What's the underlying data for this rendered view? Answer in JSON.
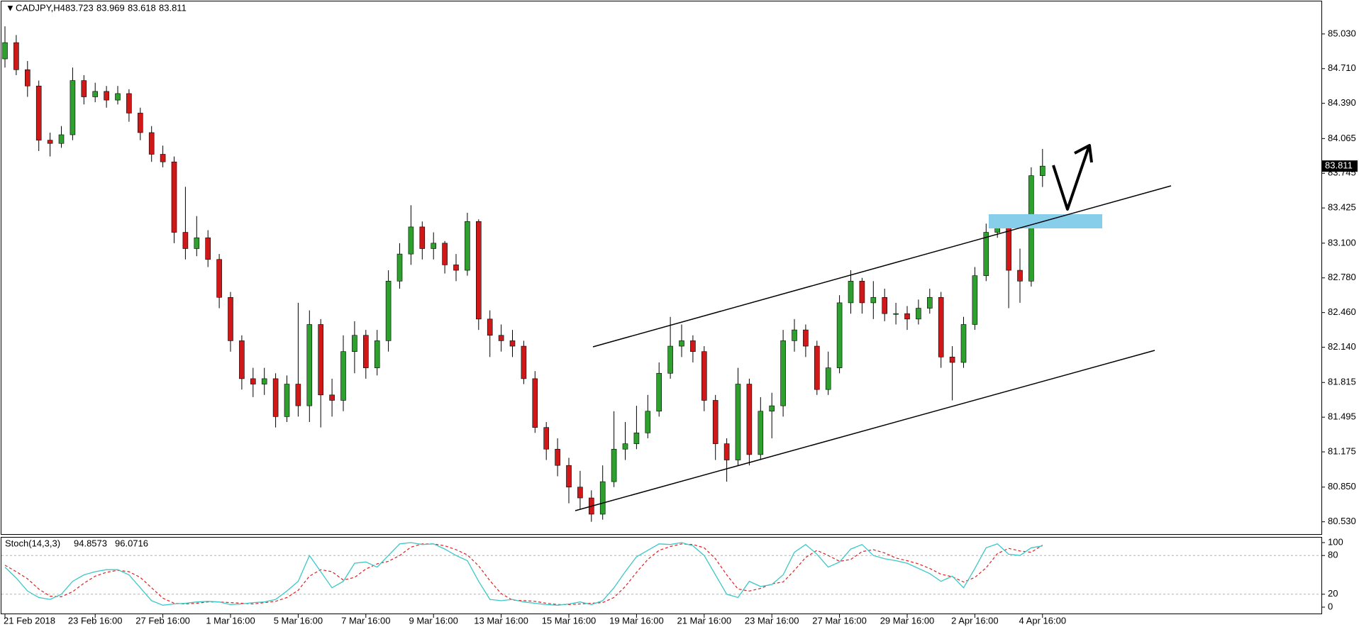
{
  "chart_data": {
    "type": "candlestick",
    "symbol": "CADJPY,H4",
    "categories": [
      "21 Feb 2018",
      null,
      null,
      null,
      null,
      null,
      null,
      null,
      "23 Feb 16:00",
      null,
      null,
      null,
      null,
      null,
      "27 Feb 16:00",
      null,
      null,
      null,
      null,
      null,
      "1 Mar 16:00",
      null,
      null,
      null,
      null,
      null,
      "5 Mar 16:00",
      null,
      null,
      null,
      null,
      null,
      "7 Mar 16:00",
      null,
      null,
      null,
      null,
      null,
      "9 Mar 16:00",
      null,
      null,
      null,
      null,
      null,
      "13 Mar 16:00",
      null,
      null,
      null,
      null,
      null,
      "15 Mar 16:00",
      null,
      null,
      null,
      null,
      null,
      "19 Mar 16:00",
      null,
      null,
      null,
      null,
      null,
      "21 Mar 16:00",
      null,
      null,
      null,
      null,
      null,
      "23 Mar 16:00",
      null,
      null,
      null,
      null,
      null,
      "27 Mar 16:00",
      null,
      null,
      null,
      null,
      null,
      "29 Mar 16:00",
      null,
      null,
      null,
      null,
      null,
      "2 Apr 16:00",
      null,
      null,
      null,
      null,
      null,
      "4 Apr 16:00"
    ],
    "open": [
      84.8,
      84.95,
      84.7,
      84.55,
      84.05,
      84.02,
      84.1,
      84.6,
      84.45,
      84.5,
      84.42,
      84.48,
      84.3,
      84.12,
      83.92,
      83.85,
      83.2,
      83.05,
      83.15,
      82.95,
      82.6,
      82.2,
      81.85,
      81.8,
      81.85,
      81.5,
      81.8,
      81.6,
      82.35,
      81.7,
      81.65,
      82.1,
      82.25,
      81.95,
      82.2,
      82.75,
      83.0,
      83.25,
      83.05,
      83.1,
      82.9,
      82.85,
      83.3,
      82.4,
      82.25,
      82.2,
      82.15,
      81.85,
      81.4,
      81.2,
      81.05,
      80.85,
      80.75,
      80.6,
      80.9,
      81.2,
      81.25,
      81.35,
      81.55,
      81.9,
      82.15,
      82.2,
      82.1,
      81.65,
      81.25,
      81.1,
      81.8,
      81.15,
      81.55,
      81.6,
      82.2,
      82.3,
      82.15,
      81.75,
      81.95,
      82.55,
      82.75,
      82.55,
      82.6,
      82.45,
      82.45,
      82.4,
      82.5,
      82.6,
      82.05,
      82.0,
      82.35,
      82.8,
      83.2,
      83.28,
      82.85,
      82.75,
      83.723
    ],
    "high": [
      85.1,
      85.02,
      84.78,
      84.6,
      84.12,
      84.18,
      84.72,
      84.65,
      84.58,
      84.55,
      84.55,
      84.52,
      84.35,
      84.18,
      84.0,
      83.9,
      83.62,
      83.35,
      83.22,
      83.0,
      82.65,
      82.25,
      81.95,
      81.95,
      81.9,
      81.88,
      82.55,
      82.48,
      82.4,
      81.85,
      82.25,
      82.38,
      82.3,
      82.3,
      82.85,
      83.1,
      83.45,
      83.3,
      83.2,
      83.12,
      83.0,
      83.38,
      83.32,
      82.48,
      82.35,
      82.3,
      82.2,
      81.92,
      81.45,
      81.3,
      81.12,
      81.0,
      80.82,
      81.05,
      81.55,
      81.45,
      81.6,
      81.7,
      82.0,
      82.42,
      82.35,
      82.25,
      82.15,
      81.7,
      81.3,
      81.95,
      81.85,
      81.68,
      81.72,
      82.3,
      82.4,
      82.35,
      82.2,
      82.1,
      82.62,
      82.85,
      82.78,
      82.75,
      82.68,
      82.55,
      82.52,
      82.58,
      82.68,
      82.65,
      82.15,
      82.42,
      82.88,
      83.28,
      83.35,
      83.35,
      83.05,
      83.8,
      83.969
    ],
    "low": [
      84.72,
      84.65,
      84.45,
      83.95,
      83.9,
      83.98,
      84.05,
      84.38,
      84.4,
      84.35,
      84.38,
      84.22,
      84.05,
      83.85,
      83.8,
      83.1,
      82.95,
      82.98,
      82.88,
      82.5,
      82.1,
      81.75,
      81.68,
      81.7,
      81.4,
      81.45,
      81.5,
      81.45,
      81.4,
      81.5,
      81.55,
      81.9,
      81.85,
      81.88,
      82.1,
      82.68,
      82.9,
      82.95,
      82.95,
      82.82,
      82.75,
      82.8,
      82.3,
      82.05,
      82.1,
      82.05,
      81.8,
      81.35,
      81.1,
      80.95,
      80.7,
      80.65,
      80.53,
      80.55,
      80.85,
      81.1,
      81.2,
      81.3,
      81.5,
      81.85,
      82.05,
      82.0,
      81.55,
      81.1,
      80.9,
      81.05,
      81.05,
      81.1,
      81.3,
      81.5,
      82.1,
      82.05,
      81.7,
      81.7,
      81.9,
      82.45,
      82.45,
      82.4,
      82.38,
      82.35,
      82.3,
      82.35,
      82.45,
      81.95,
      81.65,
      81.95,
      82.3,
      82.75,
      83.15,
      82.5,
      82.55,
      82.7,
      83.618
    ],
    "close": [
      84.95,
      84.7,
      84.55,
      84.05,
      84.02,
      84.1,
      84.6,
      84.45,
      84.5,
      84.42,
      84.48,
      84.3,
      84.12,
      83.92,
      83.85,
      83.2,
      83.05,
      83.15,
      82.95,
      82.6,
      82.2,
      81.85,
      81.8,
      81.85,
      81.5,
      81.8,
      81.6,
      82.35,
      81.7,
      81.65,
      82.1,
      82.25,
      81.95,
      82.2,
      82.75,
      83.0,
      83.25,
      83.05,
      83.1,
      82.9,
      82.85,
      83.3,
      82.4,
      82.25,
      82.2,
      82.15,
      81.85,
      81.4,
      81.2,
      81.05,
      80.85,
      80.75,
      80.6,
      80.9,
      81.2,
      81.25,
      81.35,
      81.55,
      81.9,
      82.15,
      82.2,
      82.1,
      81.65,
      81.25,
      81.1,
      81.8,
      81.15,
      81.55,
      81.6,
      82.2,
      82.3,
      82.15,
      81.75,
      81.95,
      82.55,
      82.75,
      82.55,
      82.6,
      82.45,
      82.45,
      82.4,
      82.5,
      82.6,
      82.05,
      82.0,
      82.35,
      82.8,
      83.2,
      83.28,
      82.85,
      82.75,
      83.723,
      83.811
    ],
    "up_color": "#2ea02e",
    "down_color": "#d01818",
    "ylim": [
      80.41,
      85.33
    ],
    "yticks": [
      {
        "value": 85.03,
        "label": "85.030"
      },
      {
        "value": 84.71,
        "label": "84.710"
      },
      {
        "value": 84.39,
        "label": "84.390"
      },
      84.065,
      83.745,
      83.425,
      {
        "value": 83.1,
        "label": "83.100"
      },
      {
        "value": 82.78,
        "label": "82.780"
      },
      {
        "value": 82.46,
        "label": "82.460"
      },
      {
        "value": 82.14,
        "label": "82.140"
      },
      81.815,
      81.495,
      81.175,
      {
        "value": 80.85,
        "label": "80.850"
      },
      {
        "value": 80.53,
        "label": "80.530"
      }
    ],
    "indicator": {
      "type": "stochastic",
      "name": "Stoch(14,3,3)",
      "k": [
        62,
        45,
        25,
        15,
        12,
        20,
        40,
        50,
        55,
        58,
        58,
        50,
        30,
        10,
        3,
        5,
        6,
        8,
        9,
        8,
        4,
        5,
        7,
        8,
        12,
        25,
        40,
        80,
        55,
        30,
        40,
        68,
        70,
        62,
        80,
        98,
        100,
        97,
        98,
        90,
        80,
        72,
        40,
        12,
        10,
        12,
        8,
        6,
        4,
        3,
        5,
        8,
        4,
        10,
        30,
        55,
        78,
        88,
        98,
        97,
        100,
        95,
        80,
        50,
        20,
        15,
        40,
        32,
        35,
        50,
        85,
        97,
        82,
        62,
        70,
        90,
        97,
        80,
        75,
        72,
        68,
        60,
        52,
        40,
        48,
        30,
        60,
        92,
        98,
        82,
        80,
        92,
        94.8573
      ],
      "d": [
        65,
        55,
        44,
        28,
        17,
        16,
        24,
        37,
        48,
        54,
        57,
        55,
        46,
        30,
        14,
        6,
        5,
        6,
        8,
        8,
        7,
        6,
        5,
        7,
        9,
        15,
        26,
        48,
        58,
        55,
        42,
        46,
        59,
        67,
        71,
        80,
        93,
        98,
        98,
        95,
        89,
        81,
        64,
        41,
        21,
        11,
        10,
        9,
        6,
        4,
        4,
        5,
        6,
        7,
        15,
        32,
        54,
        74,
        88,
        94,
        98,
        97,
        92,
        75,
        50,
        28,
        25,
        29,
        36,
        39,
        57,
        77,
        88,
        80,
        71,
        74,
        86,
        89,
        84,
        76,
        72,
        67,
        60,
        51,
        47,
        39,
        46,
        61,
        83,
        91,
        87,
        85,
        96.0716
      ],
      "k_color": "#3cc8c8",
      "d_color": "#e02020",
      "ylim": [
        0,
        100
      ],
      "yticks": [
        100,
        80,
        20,
        0
      ],
      "levels": [
        80,
        20
      ]
    }
  }
}
